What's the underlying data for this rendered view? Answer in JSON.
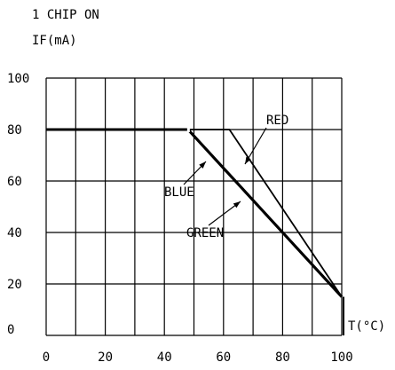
{
  "header": {
    "line1": "1 CHIP ON",
    "line2": "IF(mA)"
  },
  "chart_data": {
    "type": "line",
    "ylabel": "IF(mA)",
    "xlabel": "T(°C)",
    "xlim": [
      0,
      100
    ],
    "ylim": [
      0,
      100
    ],
    "x_ticks": [
      0,
      20,
      40,
      60,
      80,
      100
    ],
    "y_ticks": [
      0,
      20,
      40,
      60,
      80,
      100
    ],
    "grid": true,
    "series": [
      {
        "name": "BLUE",
        "x": [
          0,
          48,
          100
        ],
        "y": [
          80,
          80,
          15
        ]
      },
      {
        "name": "GREEN",
        "x": [
          0,
          48,
          100
        ],
        "y": [
          80,
          80,
          15
        ]
      },
      {
        "name": "RED",
        "x": [
          0,
          62,
          100
        ],
        "y": [
          80,
          80,
          15
        ]
      }
    ],
    "annotations": [
      "RED",
      "BLUE",
      "GREEN"
    ]
  }
}
